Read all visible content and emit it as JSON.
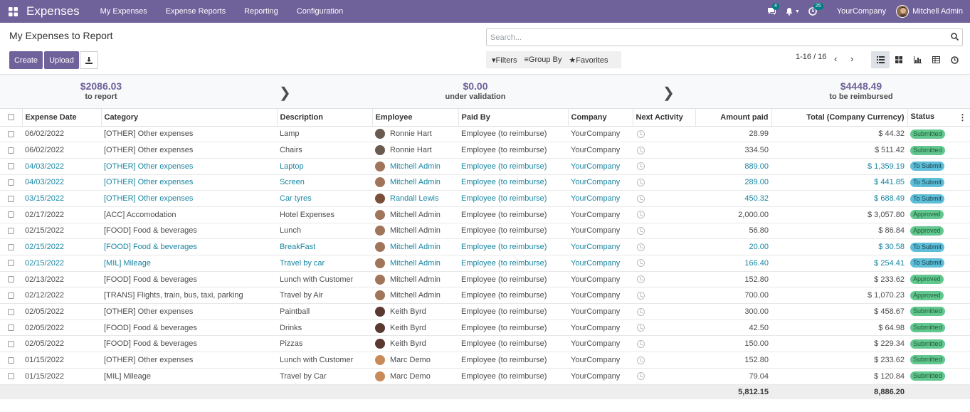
{
  "navbar": {
    "app_name": "Expenses",
    "menus": [
      "My Expenses",
      "Expense Reports",
      "Reporting",
      "Configuration"
    ],
    "messages_count": "4",
    "activity_count": "25",
    "company": "YourCompany",
    "user": "Mitchell Admin"
  },
  "control": {
    "title": "My Expenses to Report",
    "create_label": "Create",
    "upload_label": "Upload",
    "search_placeholder": "Search...",
    "filters_label": "Filters",
    "group_by_label": "Group By",
    "favorites_label": "Favorites",
    "pager": "1-16 / 16"
  },
  "summary": {
    "to_report_amount": "$2086.03",
    "to_report_label": "to report",
    "validation_amount": "$0.00",
    "validation_label": "under validation",
    "reimbursed_amount": "$4448.49",
    "reimbursed_label": "to be reimbursed"
  },
  "table": {
    "headers": [
      "Expense Date",
      "Category",
      "Description",
      "Employee",
      "Paid By",
      "Company",
      "Next Activity",
      "Amount paid",
      "Total (Company Currency)",
      "Status"
    ],
    "rows": [
      {
        "date": "06/02/2022",
        "category": "[OTHER] Other expenses",
        "description": "Lamp",
        "employee": "Ronnie Hart",
        "paid_by": "Employee (to reimburse)",
        "company": "YourCompany",
        "amount": "28.99",
        "total": "$ 44.32",
        "status": "Submitted",
        "draft": false
      },
      {
        "date": "06/02/2022",
        "category": "[OTHER] Other expenses",
        "description": "Chairs",
        "employee": "Ronnie Hart",
        "paid_by": "Employee (to reimburse)",
        "company": "YourCompany",
        "amount": "334.50",
        "total": "$ 511.42",
        "status": "Submitted",
        "draft": false
      },
      {
        "date": "04/03/2022",
        "category": "[OTHER] Other expenses",
        "description": "Laptop",
        "employee": "Mitchell Admin",
        "paid_by": "Employee (to reimburse)",
        "company": "YourCompany",
        "amount": "889.00",
        "total": "$ 1,359.19",
        "status": "To Submit",
        "draft": true
      },
      {
        "date": "04/03/2022",
        "category": "[OTHER] Other expenses",
        "description": "Screen",
        "employee": "Mitchell Admin",
        "paid_by": "Employee (to reimburse)",
        "company": "YourCompany",
        "amount": "289.00",
        "total": "$ 441.85",
        "status": "To Submit",
        "draft": true
      },
      {
        "date": "03/15/2022",
        "category": "[OTHER] Other expenses",
        "description": "Car tyres",
        "employee": "Randall Lewis",
        "paid_by": "Employee (to reimburse)",
        "company": "YourCompany",
        "amount": "450.32",
        "total": "$ 688.49",
        "status": "To Submit",
        "draft": true
      },
      {
        "date": "02/17/2022",
        "category": "[ACC] Accomodation",
        "description": "Hotel Expenses",
        "employee": "Mitchell Admin",
        "paid_by": "Employee (to reimburse)",
        "company": "YourCompany",
        "amount": "2,000.00",
        "total": "$ 3,057.80",
        "status": "Approved",
        "draft": false
      },
      {
        "date": "02/15/2022",
        "category": "[FOOD] Food & beverages",
        "description": "Lunch",
        "employee": "Mitchell Admin",
        "paid_by": "Employee (to reimburse)",
        "company": "YourCompany",
        "amount": "56.80",
        "total": "$ 86.84",
        "status": "Approved",
        "draft": false
      },
      {
        "date": "02/15/2022",
        "category": "[FOOD] Food & beverages",
        "description": "BreakFast",
        "employee": "Mitchell Admin",
        "paid_by": "Employee (to reimburse)",
        "company": "YourCompany",
        "amount": "20.00",
        "total": "$ 30.58",
        "status": "To Submit",
        "draft": true
      },
      {
        "date": "02/15/2022",
        "category": "[MIL] Mileage",
        "description": "Travel by car",
        "employee": "Mitchell Admin",
        "paid_by": "Employee (to reimburse)",
        "company": "YourCompany",
        "amount": "166.40",
        "total": "$ 254.41",
        "status": "To Submit",
        "draft": true
      },
      {
        "date": "02/13/2022",
        "category": "[FOOD] Food & beverages",
        "description": "Lunch with Customer",
        "employee": "Mitchell Admin",
        "paid_by": "Employee (to reimburse)",
        "company": "YourCompany",
        "amount": "152.80",
        "total": "$ 233.62",
        "status": "Approved",
        "draft": false
      },
      {
        "date": "02/12/2022",
        "category": "[TRANS] Flights, train, bus, taxi, parking",
        "description": "Travel by Air",
        "employee": "Mitchell Admin",
        "paid_by": "Employee (to reimburse)",
        "company": "YourCompany",
        "amount": "700.00",
        "total": "$ 1,070.23",
        "status": "Approved",
        "draft": false
      },
      {
        "date": "02/05/2022",
        "category": "[OTHER] Other expenses",
        "description": "Paintball",
        "employee": "Keith Byrd",
        "paid_by": "Employee (to reimburse)",
        "company": "YourCompany",
        "amount": "300.00",
        "total": "$ 458.67",
        "status": "Submitted",
        "draft": false
      },
      {
        "date": "02/05/2022",
        "category": "[FOOD] Food & beverages",
        "description": "Drinks",
        "employee": "Keith Byrd",
        "paid_by": "Employee (to reimburse)",
        "company": "YourCompany",
        "amount": "42.50",
        "total": "$ 64.98",
        "status": "Submitted",
        "draft": false
      },
      {
        "date": "02/05/2022",
        "category": "[FOOD] Food & beverages",
        "description": "Pizzas",
        "employee": "Keith Byrd",
        "paid_by": "Employee (to reimburse)",
        "company": "YourCompany",
        "amount": "150.00",
        "total": "$ 229.34",
        "status": "Submitted",
        "draft": false
      },
      {
        "date": "01/15/2022",
        "category": "[OTHER] Other expenses",
        "description": "Lunch with Customer",
        "employee": "Marc Demo",
        "paid_by": "Employee (to reimburse)",
        "company": "YourCompany",
        "amount": "152.80",
        "total": "$ 233.62",
        "status": "Submitted",
        "draft": false
      },
      {
        "date": "01/15/2022",
        "category": "[MIL] Mileage",
        "description": "Travel by Car",
        "employee": "Marc Demo",
        "paid_by": "Employee (to reimburse)",
        "company": "YourCompany",
        "amount": "79.04",
        "total": "$ 120.84",
        "status": "Submitted",
        "draft": false
      }
    ],
    "footer": {
      "amount_total": "5,812.15",
      "total_total": "8,886.20"
    }
  },
  "colors": {
    "brand": "#6f619a",
    "draft_text": "#1a86a2",
    "submitted": "#62c68f",
    "to_submit": "#5dbed9",
    "approved": "#62c68f"
  },
  "employee_avatar_colors": {
    "Ronnie Hart": "#6a5a50",
    "Mitchell Admin": "#a0755a",
    "Randall Lewis": "#7a4f3a",
    "Keith Byrd": "#5a3a30",
    "Marc Demo": "#c98a5a"
  }
}
